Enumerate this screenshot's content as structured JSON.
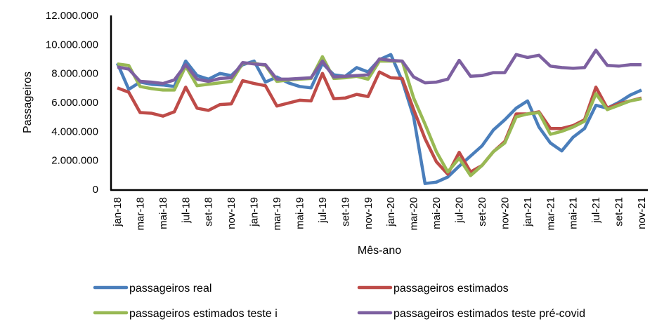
{
  "chart_data": {
    "type": "line",
    "title": "",
    "xlabel": "Mês-ano",
    "ylabel": "Passageiros",
    "ylim": [
      0,
      12000000
    ],
    "yticks": [
      0,
      2000000,
      4000000,
      6000000,
      8000000,
      10000000,
      12000000
    ],
    "ytick_labels": [
      "0",
      "2.000.000",
      "4.000.000",
      "6.000.000",
      "8.000.000",
      "10.000.000",
      "12.000.000"
    ],
    "grid": false,
    "legend_position": "bottom",
    "x": [
      "jan-18",
      "fev-18",
      "mar-18",
      "abr-18",
      "mai-18",
      "jun-18",
      "jul-18",
      "ago-18",
      "set-18",
      "out-18",
      "nov-18",
      "dez-18",
      "jan-19",
      "fev-19",
      "mar-19",
      "abr-19",
      "mai-19",
      "jun-19",
      "jul-19",
      "ago-19",
      "set-19",
      "out-19",
      "nov-19",
      "dez-19",
      "jan-20",
      "fev-20",
      "mar-20",
      "abr-20",
      "mai-20",
      "jun-20",
      "jul-20",
      "ago-20",
      "set-20",
      "out-20",
      "nov-20",
      "dez-20",
      "jan-21",
      "fev-21",
      "mar-21",
      "abr-21",
      "mai-21",
      "jun-21",
      "jul-21",
      "ago-21",
      "set-21",
      "out-21",
      "nov-21"
    ],
    "xtick_labels": [
      "jan-18",
      "mar-18",
      "mai-18",
      "jul-18",
      "set-18",
      "nov-18",
      "jan-19",
      "mar-19",
      "mai-19",
      "jul-19",
      "set-19",
      "nov-19",
      "jan-20",
      "mar-20",
      "mai-20",
      "jul-20",
      "set-20",
      "nov-20",
      "jan-21",
      "mar-21",
      "mai-21",
      "jul-21",
      "set-21",
      "nov-21"
    ],
    "series": [
      {
        "name": "passageiros real",
        "color": "#4a7ebb",
        "values": [
          8700000,
          6900000,
          7400000,
          7250000,
          7200000,
          7100000,
          8850000,
          7850000,
          7600000,
          8000000,
          7850000,
          8600000,
          8850000,
          7400000,
          7750000,
          7350000,
          7100000,
          7000000,
          8700000,
          7900000,
          7800000,
          8400000,
          8100000,
          8950000,
          9300000,
          7500000,
          5000000,
          400000,
          500000,
          850000,
          1600000,
          2300000,
          3000000,
          4100000,
          4800000,
          5600000,
          6100000,
          4300000,
          3200000,
          2650000,
          3600000,
          4200000,
          5800000,
          5600000,
          6000000,
          6500000,
          6850000
        ]
      },
      {
        "name": "passageiros estimados",
        "color": "#be4b48",
        "values": [
          7000000,
          6700000,
          5300000,
          5250000,
          5050000,
          5350000,
          7050000,
          5600000,
          5450000,
          5850000,
          5900000,
          7500000,
          7300000,
          7150000,
          5750000,
          5950000,
          6150000,
          6100000,
          8000000,
          6250000,
          6300000,
          6550000,
          6400000,
          8100000,
          7700000,
          7650000,
          5500000,
          3500000,
          1900000,
          1050000,
          2550000,
          1200000,
          1650000,
          2600000,
          3300000,
          5200000,
          5200000,
          5350000,
          4200000,
          4200000,
          4400000,
          4800000,
          7050000,
          5600000,
          5900000,
          6100000,
          6300000
        ]
      },
      {
        "name": "passageiros estimados teste i",
        "color": "#98b954",
        "values": [
          8650000,
          8550000,
          7100000,
          6950000,
          6850000,
          6850000,
          8500000,
          7150000,
          7250000,
          7350000,
          7450000,
          8700000,
          8700000,
          8550000,
          7450000,
          7550000,
          7600000,
          7650000,
          9150000,
          7650000,
          7700000,
          7800000,
          7600000,
          8850000,
          8850000,
          8850000,
          6300000,
          4500000,
          2600000,
          1200000,
          2150000,
          950000,
          1650000,
          2600000,
          3200000,
          5000000,
          5200000,
          5300000,
          3800000,
          4000000,
          4300000,
          4700000,
          6600000,
          5500000,
          5800000,
          6100000,
          6250000
        ]
      },
      {
        "name": "passageiros estimados teste pré-covid",
        "color": "#7d60a0",
        "values": [
          8450000,
          8300000,
          7450000,
          7400000,
          7300000,
          7550000,
          8600000,
          7600000,
          7450000,
          7650000,
          7700000,
          8750000,
          8650000,
          8600000,
          7600000,
          7600000,
          7650000,
          7700000,
          8850000,
          7750000,
          7800000,
          7850000,
          7900000,
          9000000,
          8900000,
          8850000,
          7750000,
          7350000,
          7400000,
          7600000,
          8900000,
          7800000,
          7850000,
          8050000,
          8050000,
          9300000,
          9100000,
          9250000,
          8500000,
          8400000,
          8350000,
          8400000,
          9600000,
          8550000,
          8500000,
          8600000,
          8600000
        ]
      }
    ]
  }
}
